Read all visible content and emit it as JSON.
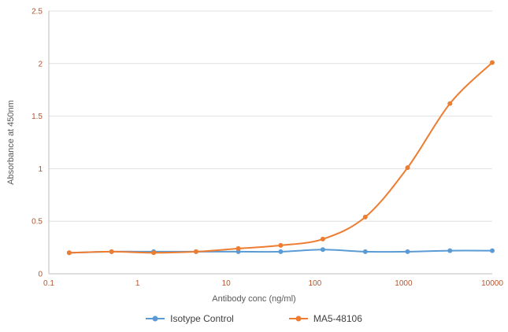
{
  "chart_data": {
    "type": "line",
    "title": "",
    "x_axis": {
      "label": "Antibody conc (ng/ml)",
      "scale": "log",
      "min": 0.1,
      "max": 10000,
      "ticks": [
        0.1,
        1,
        10,
        100,
        1000,
        10000
      ]
    },
    "y_axis": {
      "label": "Absorbance at 450nm",
      "min": 0,
      "max": 2.5,
      "ticks": [
        0,
        0.5,
        1,
        1.5,
        2,
        2.5
      ]
    },
    "x": [
      0.17,
      0.51,
      1.52,
      4.57,
      13.7,
      41.2,
      123,
      370,
      1111,
      3333,
      10000
    ],
    "series": [
      {
        "name": "Isotype Control",
        "color": "#5b9bd5",
        "values": [
          0.2,
          0.21,
          0.21,
          0.21,
          0.21,
          0.21,
          0.23,
          0.21,
          0.21,
          0.22,
          0.22
        ]
      },
      {
        "name": "MA5-48106",
        "color": "#ed7d31",
        "values": [
          0.2,
          0.21,
          0.2,
          0.21,
          0.24,
          0.27,
          0.33,
          0.54,
          1.01,
          1.62,
          2.01
        ]
      }
    ],
    "grid": "horizontal",
    "legend_position": "bottom"
  },
  "colors": {
    "tick_label": "#b5552e",
    "gridline": "#e0e0e0",
    "axis_line": "#bdbdbd",
    "axis_title": "#595959",
    "legend_text": "#404040",
    "background": "#ffffff"
  }
}
